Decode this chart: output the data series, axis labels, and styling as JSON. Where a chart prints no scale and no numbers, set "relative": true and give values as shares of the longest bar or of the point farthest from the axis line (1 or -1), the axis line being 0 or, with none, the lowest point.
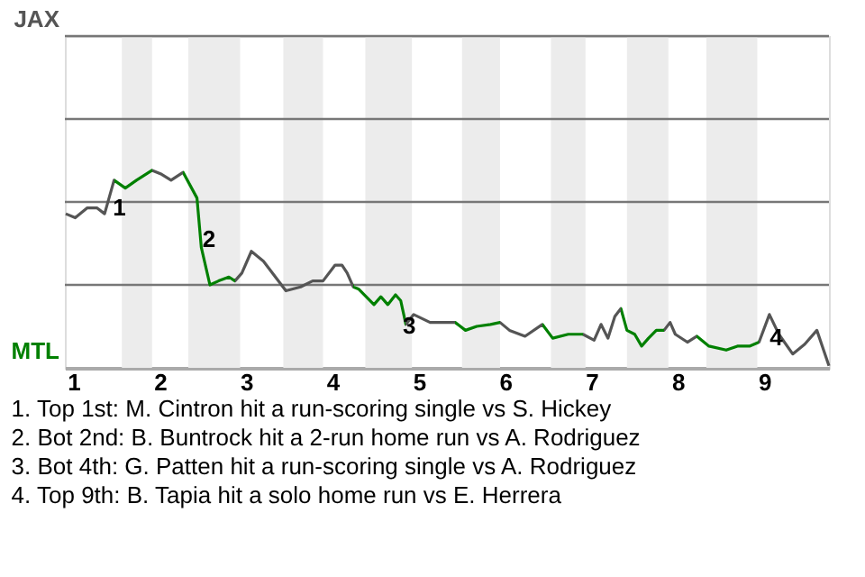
{
  "chart_data": {
    "type": "line",
    "relative": true,
    "x": [
      0.91,
      1.02,
      1.16,
      1.27,
      1.36,
      1.47,
      1.6,
      1.73,
      1.91,
      2.02,
      2.13,
      2.27,
      2.43,
      2.48,
      2.58,
      2.68,
      2.8,
      2.87,
      2.95,
      3.06,
      3.2,
      3.46,
      3.63,
      3.77,
      3.89,
      4.03,
      4.11,
      4.17,
      4.24,
      4.3,
      4.39,
      4.48,
      4.56,
      4.64,
      4.73,
      4.79,
      4.85,
      4.94,
      5.13,
      5.23,
      5.42,
      5.54,
      5.67,
      5.83,
      5.94,
      6.05,
      6.23,
      6.43,
      6.55,
      6.73,
      6.9,
      7.03,
      7.11,
      7.19,
      7.27,
      7.34,
      7.41,
      7.5,
      7.58,
      7.66,
      7.75,
      7.84,
      7.91,
      7.97,
      8.11,
      8.22,
      8.36,
      8.56,
      8.69,
      8.83,
      8.94,
      9.06,
      9.17,
      9.33,
      9.47,
      9.61,
      9.75
    ],
    "series": [
      {
        "color": "#555555",
        "values": [
          0.78,
          0.76,
          0.81,
          0.81,
          0.78,
          0.95,
          0.91,
          0.95,
          1.0,
          0.98,
          0.95,
          0.99,
          0.86,
          0.61,
          0.42,
          0.44,
          0.46,
          0.44,
          0.48,
          0.59,
          0.54,
          0.39,
          0.41,
          0.44,
          0.44,
          0.52,
          0.52,
          0.48,
          0.41,
          0.4,
          0.36,
          0.32,
          0.36,
          0.32,
          0.37,
          0.34,
          0.22,
          0.27,
          0.23,
          0.23,
          0.23,
          0.19,
          0.21,
          0.22,
          0.23,
          0.19,
          0.16,
          0.22,
          0.15,
          0.17,
          0.17,
          0.14,
          0.22,
          0.15,
          0.26,
          0.3,
          0.19,
          0.17,
          0.11,
          0.15,
          0.19,
          0.19,
          0.23,
          0.17,
          0.13,
          0.16,
          0.11,
          0.09,
          0.11,
          0.11,
          0.13,
          0.27,
          0.17,
          0.07,
          0.12,
          0.19,
          0.01
        ],
        "colors": [
          "#555555",
          "#555555",
          "#555555",
          "#555555",
          "#555555",
          "#555555",
          "#008000",
          "#008000",
          "#008000",
          "#555555",
          "#555555",
          "#555555",
          "#008000",
          "#008000",
          "#008000",
          "#008000",
          "#008000",
          "#008000",
          "#555555",
          "#555555",
          "#555555",
          "#555555",
          "#555555",
          "#555555",
          "#555555",
          "#555555",
          "#555555",
          "#555555",
          "#555555",
          "#008000",
          "#008000",
          "#008000",
          "#008000",
          "#008000",
          "#008000",
          "#008000",
          "#008000",
          "#555555",
          "#555555",
          "#555555",
          "#555555",
          "#008000",
          "#008000",
          "#008000",
          "#008000",
          "#555555",
          "#555555",
          "#555555",
          "#008000",
          "#008000",
          "#008000",
          "#555555",
          "#555555",
          "#555555",
          "#555555",
          "#555555",
          "#008000",
          "#008000",
          "#008000",
          "#008000",
          "#008000",
          "#008000",
          "#555555",
          "#555555",
          "#555555",
          "#555555",
          "#008000",
          "#008000",
          "#008000",
          "#008000",
          "#008000",
          "#555555",
          "#555555",
          "#555555",
          "#555555",
          "#555555",
          "#555555"
        ]
      }
    ],
    "xlim": [
      0.9,
      9.75
    ],
    "xticks": [
      1,
      2,
      3,
      4,
      5,
      6,
      7,
      8,
      9
    ],
    "ref_lines": [
      {
        "axis": "y",
        "value": 0.42,
        "color": "#777777"
      },
      {
        "axis": "y",
        "value": 0.84,
        "color": "#777777"
      },
      {
        "axis": "y",
        "value": 1.26,
        "color": "#777777"
      },
      {
        "axis": "y",
        "value": 1.68,
        "color": "#777777"
      }
    ],
    "bands": [
      {
        "axis": "x",
        "from": 1.56,
        "to": 1.91,
        "color": "#ececec"
      },
      {
        "axis": "x",
        "from": 2.33,
        "to": 2.93,
        "color": "#ececec"
      },
      {
        "axis": "x",
        "from": 3.43,
        "to": 3.89,
        "color": "#ececec"
      },
      {
        "axis": "x",
        "from": 4.38,
        "to": 4.92,
        "color": "#ececec"
      },
      {
        "axis": "x",
        "from": 5.5,
        "to": 5.94,
        "color": "#ececec"
      },
      {
        "axis": "x",
        "from": 6.53,
        "to": 6.93,
        "color": "#ececec"
      },
      {
        "axis": "x",
        "from": 7.41,
        "to": 7.89,
        "color": "#ececec"
      },
      {
        "axis": "x",
        "from": 8.33,
        "to": 8.92,
        "color": "#ececec"
      }
    ],
    "annotations": [
      "JAX",
      "MTL",
      {
        "text": "1",
        "x": 1.53,
        "y": 0.81
      },
      {
        "text": "2",
        "x": 2.57,
        "y": 0.65
      },
      {
        "text": "3",
        "x": 4.89,
        "y": 0.21
      },
      {
        "text": "4",
        "x": 9.14,
        "y": 0.15
      },
      "1. Top 1st: M. Cintron hit a run-scoring single vs S. Hickey",
      "2. Bot 2nd: B. Buntrock hit a 2-run home run vs A. Rodriguez",
      "3. Bot 4th: G. Patten hit a run-scoring single vs A. Rodriguez",
      "4. Top 9th: B. Tapia hit a solo home run vs E. Herrera"
    ]
  }
}
